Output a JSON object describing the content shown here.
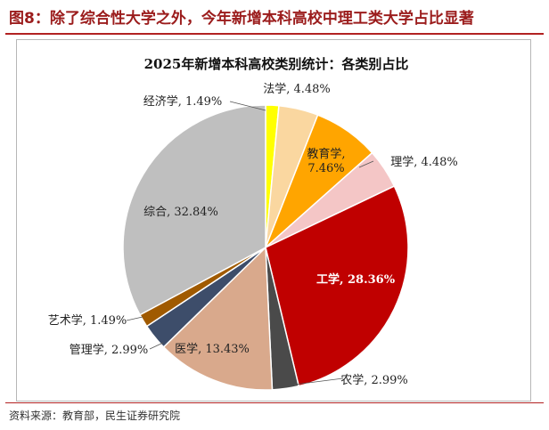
{
  "header": {
    "figure_title": "图8：除了综合性大学之外，今年新增本科高校中理工类大学占比显著"
  },
  "chart_data": {
    "type": "pie",
    "title": "2025年新增本科高校类别统计：各类别占比",
    "slices": [
      {
        "name": "经济学",
        "value": 1.49,
        "label": "经济学, 1.49%",
        "color": "#FFFF00"
      },
      {
        "name": "法学",
        "value": 4.48,
        "label": "法学, 4.48%",
        "color": "#FAD7A0"
      },
      {
        "name": "教育学",
        "value": 7.46,
        "label": "教育学, 7.46%",
        "color": "#FFA500"
      },
      {
        "name": "理学",
        "value": 4.48,
        "label": "理学, 4.48%",
        "color": "#F4C6C6"
      },
      {
        "name": "工学",
        "value": 28.36,
        "label": "工学, 28.36%",
        "color": "#C00000"
      },
      {
        "name": "农学",
        "value": 2.99,
        "label": "农学, 2.99%",
        "color": "#4A4A4A"
      },
      {
        "name": "医学",
        "value": 13.43,
        "label": "医学, 13.43%",
        "color": "#D9A98C"
      },
      {
        "name": "管理学",
        "value": 2.99,
        "label": "管理学, 2.99%",
        "color": "#3D4D6A"
      },
      {
        "name": "艺术学",
        "value": 1.49,
        "label": "艺术学, 1.49%",
        "color": "#A05A00"
      },
      {
        "name": "综合",
        "value": 32.84,
        "label": "综合, 32.84%",
        "color": "#BFBFBF"
      }
    ]
  },
  "footer": {
    "source": "资料来源：教育部，民生证券研究院"
  }
}
